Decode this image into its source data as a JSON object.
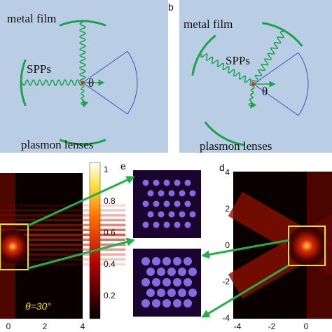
{
  "panel_b_label": "b",
  "left_schematic": {
    "film": "metal film",
    "spps": "SPPs",
    "angle": "θ",
    "lenses": "plasmon lenses"
  },
  "right_schematic": {
    "film": "metal film",
    "spps": "SPPs",
    "angle": "θ",
    "lenses": "plasmon lenses"
  },
  "left_map": {
    "annotation": "θ=30°",
    "xticks": [
      0,
      2,
      4
    ]
  },
  "colorbar": {
    "ticks": [
      1,
      0.8,
      0.6,
      0.4,
      0.2
    ]
  },
  "panel_e_label": "e",
  "panel_d_label": "d",
  "right_map": {
    "yticks": [
      4,
      2,
      0,
      -2,
      -4
    ],
    "xticks": [
      -4,
      -2,
      0
    ]
  }
}
